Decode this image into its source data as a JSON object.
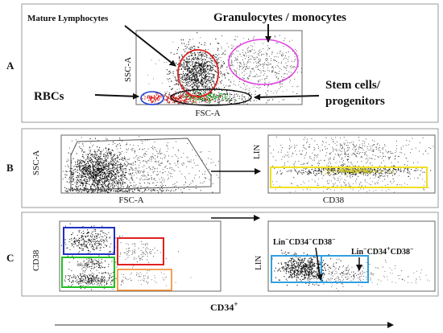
{
  "panel_a": {
    "label": "A",
    "annotations": {
      "mature_lymphocytes": "Mature Lymphocytes",
      "granulocytes_monocytes": "Granulocytes / monocytes",
      "rbcs": "RBCs",
      "stem_cells_line1": "Stem cells/",
      "stem_cells_line2": "progenitors"
    },
    "axes": {
      "x": "FSC-A",
      "y": "SSC-A"
    },
    "gate_colors": {
      "lymphocytes": "#e02020",
      "granulocytes": "#e040e0",
      "rbcs": "#2040d0",
      "stem": "#111111"
    }
  },
  "panel_b": {
    "label": "B",
    "left_axes": {
      "x": "FSC-A",
      "y": "SSC-A"
    },
    "right_axes": {
      "x": "CD38",
      "y": "LIN"
    },
    "gate_colors": {
      "polygon": "#555555",
      "lin_gate": "#f0e020"
    }
  },
  "panel_c": {
    "label": "C",
    "left_axes": {
      "y": "CD38"
    },
    "right_axes": {
      "y": "LIN"
    },
    "annotations": {
      "cd38_neg_lin": "Lin",
      "cd38_neg_lin_sup": "−",
      "cd38_neg_cd34": "CD34",
      "cd38_neg_cd34_sup": "−",
      "cd38_neg_cd38": "CD38",
      "cd38_neg_cd38_sup": "−",
      "cd34pos_lin": "Lin",
      "cd34pos_lin_sup": "−",
      "cd34pos_cd34": "CD34",
      "cd34pos_cd34_sup": "+",
      "cd34pos_cd38": "CD38",
      "cd34pos_cd38_sup": "−"
    },
    "gate_colors": {
      "blue": "#2030c0",
      "red": "#e02020",
      "green": "#20c020",
      "orange": "#f08020",
      "cyan": "#30a0e0"
    }
  },
  "bottom_axis": {
    "label": "CD34",
    "sup": "+"
  }
}
